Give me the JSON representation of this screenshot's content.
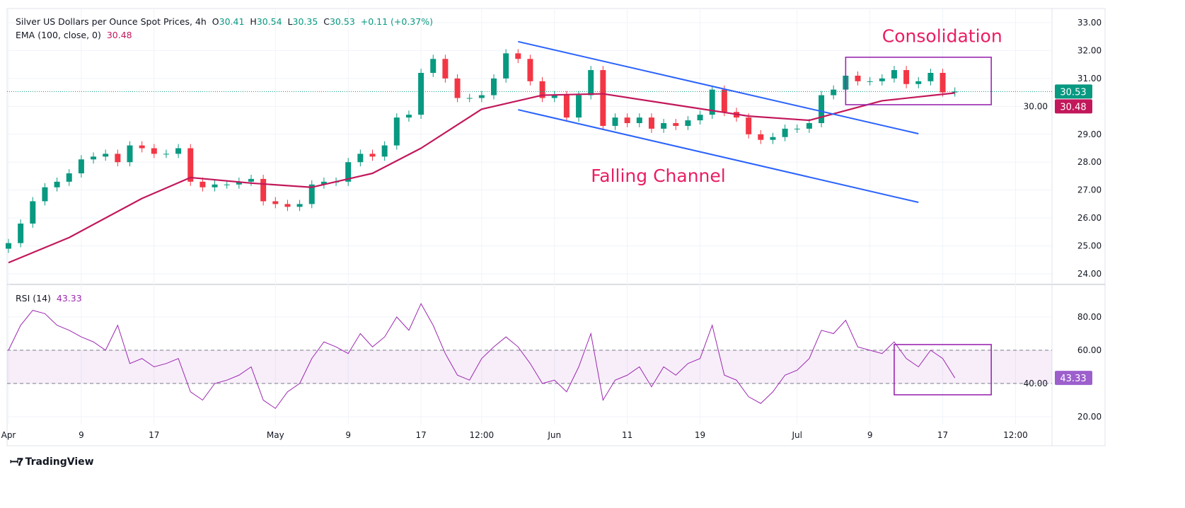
{
  "header": {
    "title": "Silver US Dollars per Ounce Spot Prices, 4h",
    "o_label": "O",
    "o": "30.41",
    "h_label": "H",
    "h": "30.54",
    "l_label": "L",
    "l": "30.35",
    "c_label": "C",
    "c": "30.53",
    "change": "+0.11 (+0.37%)",
    "ema_label": "EMA (100, close, 0)",
    "ema_value": "30.48",
    "rsi_label": "RSI (14)",
    "rsi_value": "43.33"
  },
  "footer": {
    "brand": "TradingView"
  },
  "colors": {
    "up": "#089981",
    "down": "#f23645",
    "ema": "#c2185b",
    "channel": "#2962ff",
    "box": "#9c27b0",
    "annotation": "#e91e63",
    "rsi": "#9c27b0",
    "last_price": "#089981"
  },
  "chart_data": [
    {
      "type": "candlestick",
      "title": "Silver US Dollars per Ounce Spot Prices, 4h",
      "start_date": "2024-04-01",
      "x_unit": "trading day",
      "ylim": [
        24,
        33
      ],
      "yticks": [
        "24.00",
        "25.00",
        "26.00",
        "27.00",
        "28.00",
        "29.00",
        "30.00",
        "31.00",
        "32.00",
        "33.00"
      ],
      "xticks": [
        {
          "label": "Apr",
          "date": "2024-04-01"
        },
        {
          "label": "9",
          "date": "2024-04-09"
        },
        {
          "label": "17",
          "date": "2024-04-17"
        },
        {
          "label": "May",
          "date": "2024-05-01"
        },
        {
          "label": "9",
          "date": "2024-05-09"
        },
        {
          "label": "17",
          "date": "2024-05-17"
        },
        {
          "label": "12:00",
          "date": "2024-05-24"
        },
        {
          "label": "Jun",
          "date": "2024-06-03"
        },
        {
          "label": "11",
          "date": "2024-06-11"
        },
        {
          "label": "19",
          "date": "2024-06-19"
        },
        {
          "label": "Jul",
          "date": "2024-07-01"
        },
        {
          "label": "9",
          "date": "2024-07-09"
        },
        {
          "label": "17",
          "date": "2024-07-17"
        },
        {
          "label": "12:00",
          "date": "2024-07-25"
        }
      ],
      "closes": [
        25.1,
        25.8,
        26.6,
        27.1,
        27.3,
        27.6,
        28.1,
        28.2,
        28.3,
        28.0,
        28.6,
        28.5,
        28.3,
        28.3,
        28.5,
        27.3,
        27.1,
        27.2,
        27.2,
        27.3,
        27.4,
        26.6,
        26.5,
        26.4,
        26.5,
        27.2,
        27.3,
        27.3,
        28.0,
        28.3,
        28.2,
        28.6,
        29.6,
        29.7,
        31.2,
        31.7,
        31.0,
        30.3,
        30.3,
        30.4,
        31.0,
        31.9,
        31.7,
        30.9,
        30.3,
        30.4,
        29.6,
        30.4,
        31.3,
        29.3,
        29.6,
        29.4,
        29.6,
        29.2,
        29.4,
        29.3,
        29.5,
        29.7,
        30.6,
        29.8,
        29.6,
        29.0,
        28.8,
        28.9,
        29.2,
        29.2,
        29.4,
        30.4,
        30.6,
        31.1,
        30.9,
        30.9,
        31.0,
        31.3,
        30.8,
        30.9,
        31.2,
        30.5,
        30.53
      ],
      "ema": {
        "name": "EMA (100, close, 0)",
        "points": [
          {
            "date": "2024-04-01",
            "value": 24.4
          },
          {
            "date": "2024-04-08",
            "value": 25.3
          },
          {
            "date": "2024-04-16",
            "value": 26.7
          },
          {
            "date": "2024-04-22",
            "value": 27.45
          },
          {
            "date": "2024-04-29",
            "value": 27.25
          },
          {
            "date": "2024-05-06",
            "value": 27.1
          },
          {
            "date": "2024-05-13",
            "value": 27.6
          },
          {
            "date": "2024-05-17",
            "value": 28.5
          },
          {
            "date": "2024-05-24",
            "value": 29.9
          },
          {
            "date": "2024-05-31",
            "value": 30.4
          },
          {
            "date": "2024-06-07",
            "value": 30.45
          },
          {
            "date": "2024-06-17",
            "value": 30.05
          },
          {
            "date": "2024-06-25",
            "value": 29.65
          },
          {
            "date": "2024-07-02",
            "value": 29.5
          },
          {
            "date": "2024-07-10",
            "value": 30.2
          },
          {
            "date": "2024-07-18",
            "value": 30.48
          }
        ]
      },
      "last_price": "30.53",
      "last_ema": "30.48",
      "annotations": [
        {
          "type": "trendline",
          "name": "channel-upper",
          "start": {
            "date": "2024-05-29",
            "value": 32.32
          },
          "end": {
            "date": "2024-07-15",
            "value": 29.02
          }
        },
        {
          "type": "trendline",
          "name": "channel-lower",
          "start": {
            "date": "2024-05-29",
            "value": 29.88
          },
          "end": {
            "date": "2024-07-15",
            "value": 26.56
          }
        },
        {
          "type": "rectangle",
          "name": "consolidation-box",
          "start": {
            "date": "2024-07-05",
            "value": 31.76
          },
          "end": {
            "date": "2024-07-23",
            "value": 30.06
          }
        },
        {
          "type": "text",
          "text": "Consolidation",
          "date": "2024-07-10",
          "value": 32.3
        },
        {
          "type": "text",
          "text": "Falling Channel",
          "date": "2024-06-06",
          "value": 27.3
        }
      ]
    },
    {
      "type": "line",
      "title": "RSI (14)",
      "start_date": "2024-04-01",
      "ylim": [
        15,
        98
      ],
      "yticks": [
        "20.00",
        "40.00",
        "60.00",
        "80.00"
      ],
      "band": [
        40,
        60
      ],
      "values": [
        60,
        75,
        84,
        82,
        75,
        72,
        68,
        65,
        60,
        75,
        52,
        55,
        50,
        52,
        55,
        35,
        30,
        40,
        42,
        45,
        50,
        30,
        25,
        35,
        40,
        55,
        65,
        62,
        58,
        70,
        62,
        68,
        80,
        72,
        88,
        75,
        58,
        45,
        42,
        55,
        62,
        68,
        62,
        52,
        40,
        42,
        35,
        50,
        70,
        30,
        42,
        45,
        50,
        38,
        50,
        45,
        52,
        55,
        75,
        45,
        42,
        32,
        28,
        35,
        45,
        48,
        55,
        72,
        70,
        78,
        62,
        60,
        58,
        65,
        55,
        50,
        60,
        55,
        43.33
      ],
      "last_value": "43.33",
      "annotations": [
        {
          "type": "rectangle",
          "name": "rsi-box",
          "start": {
            "date": "2024-07-11",
            "value": 63.4
          },
          "end": {
            "date": "2024-07-23",
            "value": 33.2
          }
        }
      ]
    }
  ]
}
